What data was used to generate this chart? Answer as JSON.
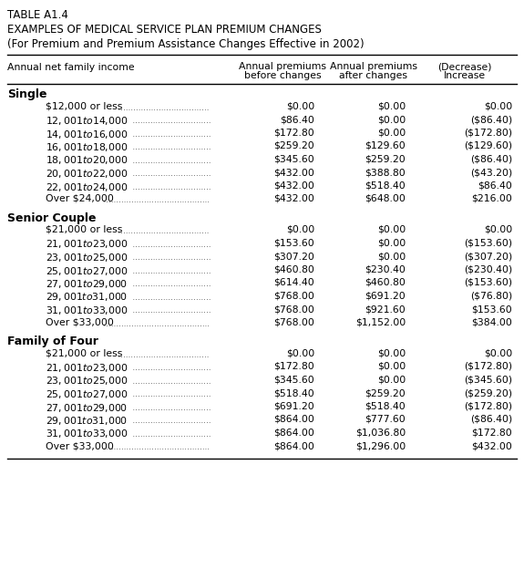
{
  "title_line1": "TABLE A1.4",
  "title_line2": "EXAMPLES OF MEDICAL SERVICE PLAN PREMIUM CHANGES",
  "title_line3": "(For Premium and Premium Assistance Changes Effective in 2002)",
  "col_header0": "Annual net family income",
  "col_header1": "Annual premiums\nbefore changes",
  "col_header2": "Annual premiums\nafter changes",
  "col_header3": "(Decrease)\nIncrease",
  "sections": [
    {
      "header": "Single",
      "rows": [
        [
          "$12,000 or less",
          "$0.00",
          "$0.00",
          "$0.00"
        ],
        [
          "$12,001 to $14,000",
          "$86.40",
          "$0.00",
          "($86.40)"
        ],
        [
          "$14,001 to $16,000",
          "$172.80",
          "$0.00",
          "($172.80)"
        ],
        [
          "$16,001 to $18,000",
          "$259.20",
          "$129.60",
          "($129.60)"
        ],
        [
          "$18,001 to $20,000",
          "$345.60",
          "$259.20",
          "($86.40)"
        ],
        [
          "$20,001 to $22,000",
          "$432.00",
          "$388.80",
          "($43.20)"
        ],
        [
          "$22,001 to $24,000",
          "$432.00",
          "$518.40",
          "$86.40"
        ],
        [
          "Over $24,000",
          "$432.00",
          "$648.00",
          "$216.00"
        ]
      ]
    },
    {
      "header": "Senior Couple",
      "rows": [
        [
          "$21,000 or less",
          "$0.00",
          "$0.00",
          "$0.00"
        ],
        [
          "$21,001 to $23,000",
          "$153.60",
          "$0.00",
          "($153.60)"
        ],
        [
          "$23,001 to $25,000",
          "$307.20",
          "$0.00",
          "($307.20)"
        ],
        [
          "$25,001 to $27,000",
          "$460.80",
          "$230.40",
          "($230.40)"
        ],
        [
          "$27,001 to $29,000",
          "$614.40",
          "$460.80",
          "($153.60)"
        ],
        [
          "$29,001 to $31,000",
          "$768.00",
          "$691.20",
          "($76.80)"
        ],
        [
          "$31,001 to $33,000",
          "$768.00",
          "$921.60",
          "$153.60"
        ],
        [
          "Over $33,000",
          "$768.00",
          "$1,152.00",
          "$384.00"
        ]
      ]
    },
    {
      "header": "Family of Four",
      "rows": [
        [
          "$21,000 or less",
          "$0.00",
          "$0.00",
          "$0.00"
        ],
        [
          "$21,001 to $23,000",
          "$172.80",
          "$0.00",
          "($172.80)"
        ],
        [
          "$23,001 to $25,000",
          "$345.60",
          "$0.00",
          "($345.60)"
        ],
        [
          "$25,001 to $27,000",
          "$518.40",
          "$259.20",
          "($259.20)"
        ],
        [
          "$27,001 to $29,000",
          "$691.20",
          "$518.40",
          "($172.80)"
        ],
        [
          "$29,001 to $31,000",
          "$864.00",
          "$777.60",
          "($86.40)"
        ],
        [
          "$31,001 to $33,000",
          "$864.00",
          "$1,036.80",
          "$172.80"
        ],
        [
          "Over $33,000",
          "$864.00",
          "$1,296.00",
          "$432.00"
        ]
      ]
    }
  ],
  "font_size_title1": 8.5,
  "font_size_title2": 8.5,
  "font_size_title3": 8.5,
  "font_size_col_header": 7.8,
  "font_size_section_header": 9.0,
  "font_size_row": 7.8,
  "background_color": "#ffffff"
}
